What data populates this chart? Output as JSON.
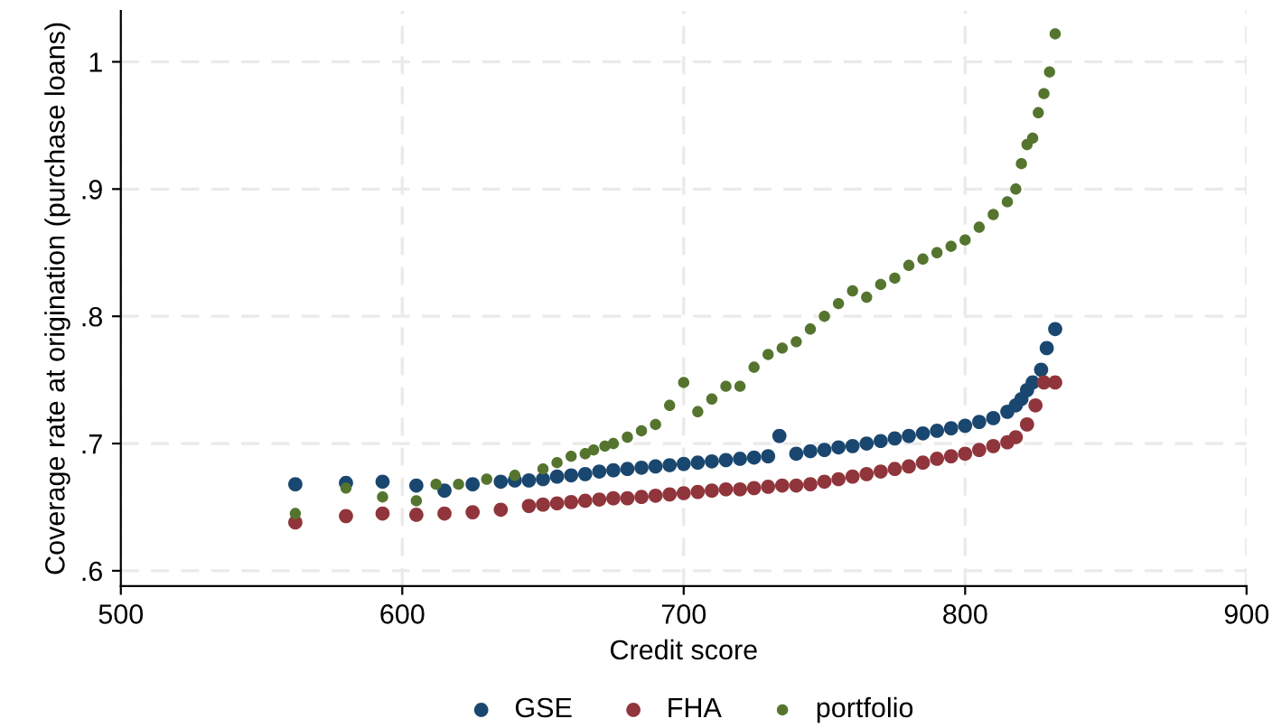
{
  "chart_data": {
    "type": "scatter",
    "xlabel": "Credit score",
    "ylabel": "Coverage rate at origination (purchase loans)",
    "xlim": [
      500,
      900
    ],
    "xticks": [
      500,
      600,
      700,
      800,
      900
    ],
    "ylim": [
      0.588,
      1.04
    ],
    "yticks": [
      {
        "value": 0.6,
        "label": ".6"
      },
      {
        "value": 0.7,
        "label": ".7"
      },
      {
        "value": 0.8,
        "label": ".8"
      },
      {
        "value": 0.9,
        "label": ".9"
      },
      {
        "value": 1,
        "label": "1"
      }
    ],
    "grid": true,
    "legend": "bottom",
    "marker": "circle",
    "series": [
      {
        "name": "GSE",
        "color": "#1a476f",
        "x": [
          562,
          580,
          593,
          605,
          615,
          625,
          635,
          640,
          645,
          650,
          655,
          660,
          665,
          670,
          675,
          680,
          685,
          690,
          695,
          700,
          705,
          710,
          715,
          720,
          725,
          730,
          734,
          740,
          745,
          750,
          755,
          760,
          765,
          770,
          775,
          780,
          785,
          790,
          795,
          800,
          805,
          810,
          815,
          818,
          820,
          822,
          824,
          827,
          829,
          832
        ],
        "values": [
          0.668,
          0.669,
          0.67,
          0.667,
          0.663,
          0.668,
          0.67,
          0.671,
          0.671,
          0.672,
          0.674,
          0.675,
          0.676,
          0.678,
          0.679,
          0.68,
          0.681,
          0.682,
          0.683,
          0.684,
          0.685,
          0.686,
          0.687,
          0.688,
          0.689,
          0.69,
          0.706,
          0.692,
          0.694,
          0.695,
          0.697,
          0.698,
          0.7,
          0.702,
          0.704,
          0.706,
          0.708,
          0.71,
          0.712,
          0.714,
          0.717,
          0.72,
          0.725,
          0.73,
          0.735,
          0.742,
          0.748,
          0.758,
          0.775,
          0.79
        ]
      },
      {
        "name": "FHA",
        "color": "#90353b",
        "x": [
          562,
          580,
          593,
          605,
          615,
          625,
          635,
          645,
          650,
          655,
          660,
          665,
          670,
          675,
          680,
          685,
          690,
          695,
          700,
          705,
          710,
          715,
          720,
          725,
          730,
          735,
          740,
          745,
          750,
          755,
          760,
          765,
          770,
          775,
          780,
          785,
          790,
          795,
          800,
          805,
          810,
          815,
          818,
          822,
          825,
          828,
          832
        ],
        "values": [
          0.638,
          0.643,
          0.645,
          0.644,
          0.645,
          0.646,
          0.648,
          0.651,
          0.652,
          0.653,
          0.654,
          0.655,
          0.656,
          0.657,
          0.657,
          0.658,
          0.659,
          0.66,
          0.661,
          0.662,
          0.663,
          0.664,
          0.664,
          0.665,
          0.666,
          0.667,
          0.667,
          0.668,
          0.67,
          0.672,
          0.674,
          0.676,
          0.678,
          0.68,
          0.682,
          0.685,
          0.688,
          0.69,
          0.692,
          0.695,
          0.698,
          0.701,
          0.705,
          0.715,
          0.73,
          0.748,
          0.748
        ]
      },
      {
        "name": "portfolio",
        "color": "#55752f",
        "x": [
          562,
          580,
          593,
          605,
          612,
          620,
          630,
          640,
          650,
          655,
          660,
          665,
          668,
          672,
          675,
          680,
          685,
          690,
          695,
          700,
          705,
          710,
          715,
          720,
          725,
          730,
          735,
          740,
          745,
          750,
          755,
          760,
          765,
          770,
          775,
          780,
          785,
          790,
          795,
          800,
          805,
          810,
          815,
          818,
          820,
          822,
          824,
          826,
          828,
          830,
          832
        ],
        "values": [
          0.645,
          0.665,
          0.658,
          0.655,
          0.668,
          0.668,
          0.672,
          0.675,
          0.68,
          0.685,
          0.69,
          0.692,
          0.695,
          0.698,
          0.7,
          0.705,
          0.71,
          0.715,
          0.73,
          0.748,
          0.725,
          0.735,
          0.745,
          0.745,
          0.76,
          0.77,
          0.775,
          0.78,
          0.79,
          0.8,
          0.81,
          0.82,
          0.815,
          0.825,
          0.83,
          0.84,
          0.845,
          0.85,
          0.855,
          0.86,
          0.87,
          0.88,
          0.89,
          0.9,
          0.92,
          0.935,
          0.94,
          0.96,
          0.975,
          0.992,
          1.022
        ]
      }
    ]
  }
}
